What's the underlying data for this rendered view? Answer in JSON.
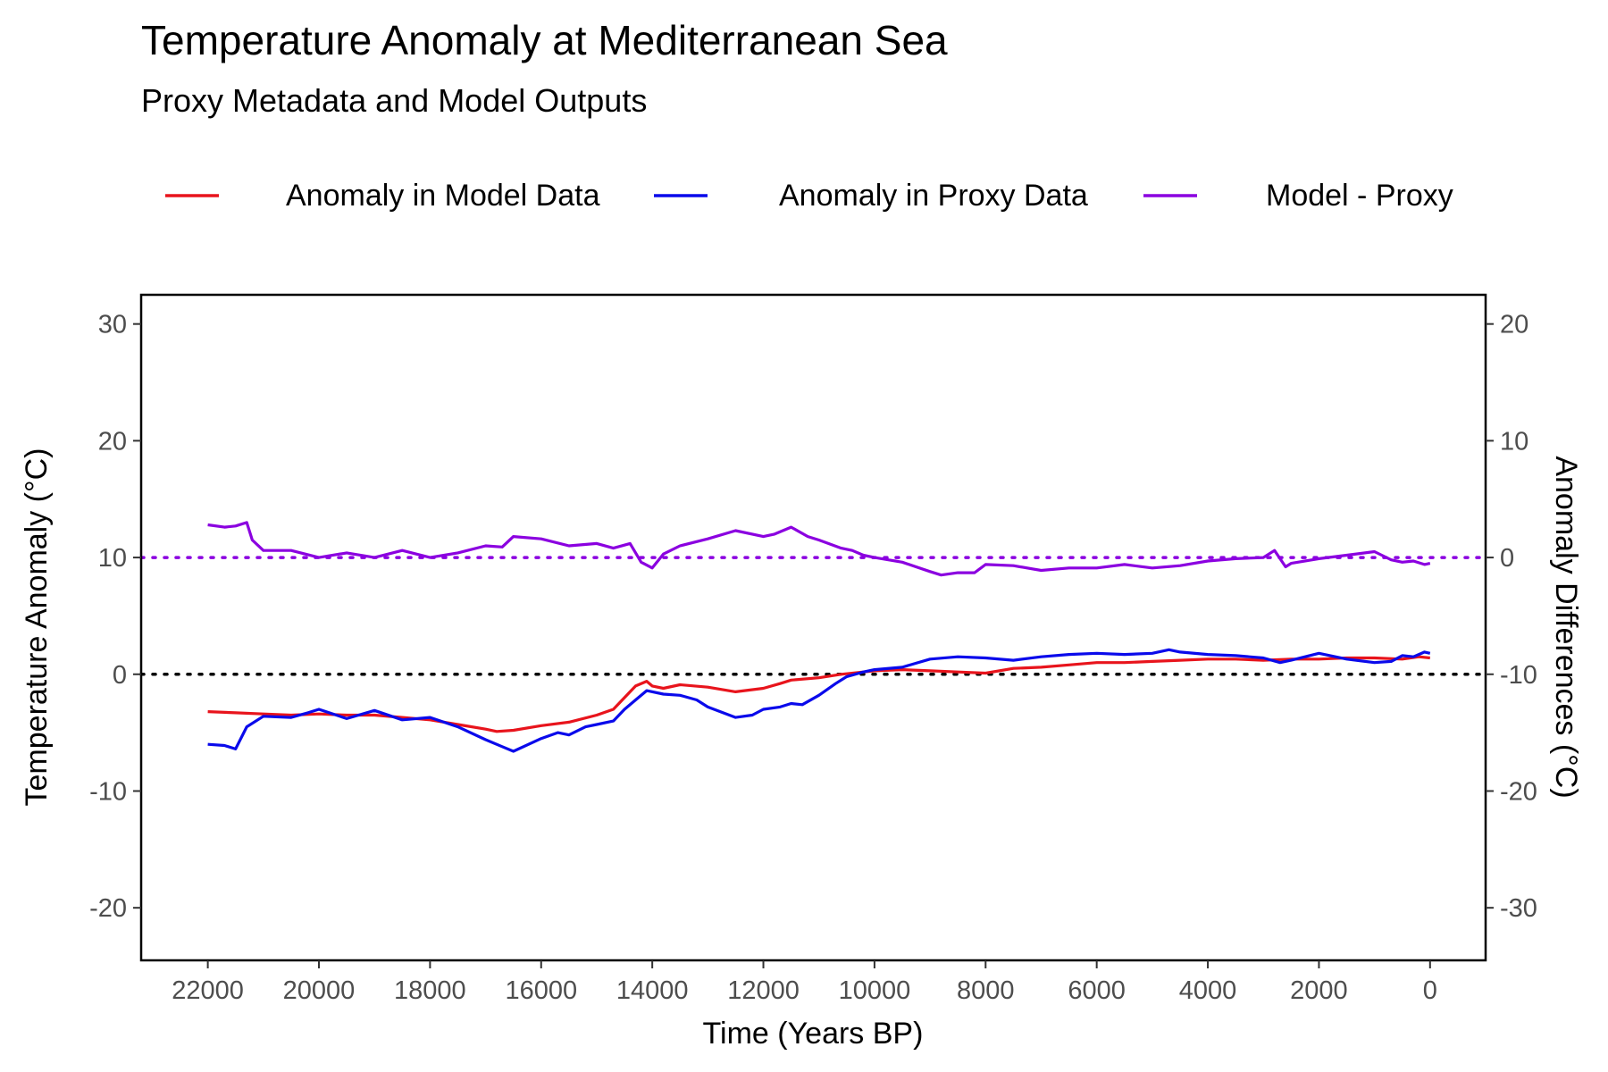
{
  "chart_data": {
    "type": "line",
    "title": "Temperature Anomaly at Mediterranean Sea",
    "subtitle": "Proxy Metadata and Model Outputs",
    "xlabel": "Time (Years BP)",
    "ylabel": "Temperature Anomaly (°C)",
    "y2label": "Anomaly Differences (°C)",
    "xlim": [
      23200,
      -1000
    ],
    "x_reversed": true,
    "ylim": [
      -24.5,
      32.5
    ],
    "y2lim": [
      -34.5,
      22.5
    ],
    "x_ticks": [
      22000,
      20000,
      18000,
      16000,
      14000,
      12000,
      10000,
      8000,
      6000,
      4000,
      2000,
      0
    ],
    "x_tick_labels": [
      "22000",
      "20000",
      "18000",
      "16000",
      "14000",
      "12000",
      "10000",
      "8000",
      "6000",
      "4000",
      "2000",
      "0"
    ],
    "y_ticks": [
      30,
      20,
      10,
      0,
      -10,
      -20
    ],
    "y_tick_labels": [
      "30",
      "20",
      "10",
      "0",
      "-10",
      "-20"
    ],
    "y2_ticks": [
      20,
      10,
      0,
      -10,
      -20,
      -30
    ],
    "y2_tick_labels": [
      "20",
      "10",
      "0",
      "-10",
      "-20",
      "-30"
    ],
    "grid": false,
    "legend_position": "top",
    "reference_lines": [
      {
        "axis": "y",
        "value": 0,
        "color": "#000000",
        "style": "dotted"
      },
      {
        "axis": "y2",
        "value": 0,
        "color": "#8B00E0",
        "style": "dotted"
      }
    ],
    "series": [
      {
        "name": "Anomaly in Model Data",
        "axis": "y",
        "color": "#E8141C",
        "x": [
          22000,
          21500,
          21000,
          20500,
          20000,
          19500,
          19000,
          18500,
          18000,
          17500,
          17000,
          16800,
          16500,
          16000,
          15500,
          15000,
          14700,
          14500,
          14300,
          14100,
          14000,
          13800,
          13500,
          13000,
          12500,
          12000,
          11700,
          11500,
          11000,
          10600,
          10200,
          10000,
          9500,
          9000,
          8500,
          8000,
          7500,
          7000,
          6500,
          6000,
          5500,
          5000,
          4500,
          4000,
          3500,
          3000,
          2500,
          2000,
          1500,
          1000,
          500,
          200,
          0
        ],
        "y": [
          -3.2,
          -3.3,
          -3.4,
          -3.5,
          -3.4,
          -3.5,
          -3.5,
          -3.7,
          -3.9,
          -4.3,
          -4.7,
          -4.9,
          -4.8,
          -4.4,
          -4.1,
          -3.5,
          -3.0,
          -2.0,
          -1.0,
          -0.6,
          -1.0,
          -1.2,
          -0.9,
          -1.1,
          -1.5,
          -1.2,
          -0.8,
          -0.5,
          -0.3,
          0.0,
          0.2,
          0.3,
          0.4,
          0.3,
          0.2,
          0.1,
          0.5,
          0.6,
          0.8,
          1.0,
          1.0,
          1.1,
          1.2,
          1.3,
          1.3,
          1.2,
          1.3,
          1.3,
          1.4,
          1.4,
          1.3,
          1.5,
          1.4
        ]
      },
      {
        "name": "Anomaly in Proxy Data",
        "axis": "y",
        "color": "#0A0AEB",
        "x": [
          22000,
          21700,
          21500,
          21300,
          21000,
          20500,
          20200,
          20000,
          19500,
          19000,
          18500,
          18000,
          17500,
          17000,
          16700,
          16500,
          16000,
          15700,
          15500,
          15200,
          15000,
          14700,
          14500,
          14300,
          14100,
          13800,
          13500,
          13200,
          13000,
          12500,
          12200,
          12000,
          11700,
          11500,
          11300,
          11000,
          10700,
          10500,
          10200,
          10000,
          9500,
          9000,
          8500,
          8000,
          7500,
          7000,
          6500,
          6000,
          5500,
          5000,
          4700,
          4500,
          4000,
          3500,
          3000,
          2700,
          2500,
          2000,
          1500,
          1000,
          700,
          500,
          300,
          100,
          0
        ],
        "y": [
          -6.0,
          -6.1,
          -6.4,
          -4.5,
          -3.6,
          -3.7,
          -3.3,
          -3.0,
          -3.8,
          -3.1,
          -3.9,
          -3.7,
          -4.5,
          -5.6,
          -6.2,
          -6.6,
          -5.5,
          -5.0,
          -5.2,
          -4.5,
          -4.3,
          -4.0,
          -3.0,
          -2.2,
          -1.4,
          -1.7,
          -1.8,
          -2.2,
          -2.8,
          -3.7,
          -3.5,
          -3.0,
          -2.8,
          -2.5,
          -2.6,
          -1.8,
          -0.8,
          -0.2,
          0.2,
          0.4,
          0.6,
          1.3,
          1.5,
          1.4,
          1.2,
          1.5,
          1.7,
          1.8,
          1.7,
          1.8,
          2.1,
          1.9,
          1.7,
          1.6,
          1.4,
          1.0,
          1.2,
          1.8,
          1.3,
          1.0,
          1.1,
          1.6,
          1.5,
          1.9,
          1.8
        ]
      },
      {
        "name": "Model - Proxy",
        "axis": "y2",
        "color": "#8B00E0",
        "x": [
          22000,
          21700,
          21500,
          21300,
          21200,
          21000,
          20500,
          20000,
          19500,
          19000,
          18500,
          18000,
          17500,
          17000,
          16700,
          16500,
          16000,
          15500,
          15000,
          14700,
          14400,
          14200,
          14000,
          13800,
          13500,
          13000,
          12500,
          12000,
          11800,
          11500,
          11200,
          11000,
          10600,
          10400,
          10200,
          10000,
          9500,
          9000,
          8800,
          8500,
          8200,
          8000,
          7500,
          7000,
          6500,
          6000,
          5500,
          5000,
          4500,
          4000,
          3500,
          3000,
          2800,
          2600,
          2500,
          2000,
          1500,
          1000,
          700,
          500,
          300,
          100,
          0
        ],
        "y": [
          2.8,
          2.6,
          2.7,
          3.0,
          1.5,
          0.6,
          0.6,
          0.0,
          0.4,
          0.0,
          0.6,
          0.0,
          0.4,
          1.0,
          0.9,
          1.8,
          1.6,
          1.0,
          1.2,
          0.8,
          1.2,
          -0.4,
          -0.9,
          0.3,
          1.0,
          1.6,
          2.3,
          1.8,
          2.0,
          2.6,
          1.8,
          1.5,
          0.8,
          0.6,
          0.2,
          0.0,
          -0.4,
          -1.2,
          -1.5,
          -1.3,
          -1.3,
          -0.6,
          -0.7,
          -1.1,
          -0.9,
          -0.9,
          -0.6,
          -0.9,
          -0.7,
          -0.3,
          -0.1,
          0.0,
          0.6,
          -0.8,
          -0.5,
          -0.1,
          0.2,
          0.5,
          -0.2,
          -0.4,
          -0.3,
          -0.6,
          -0.5
        ]
      }
    ]
  }
}
